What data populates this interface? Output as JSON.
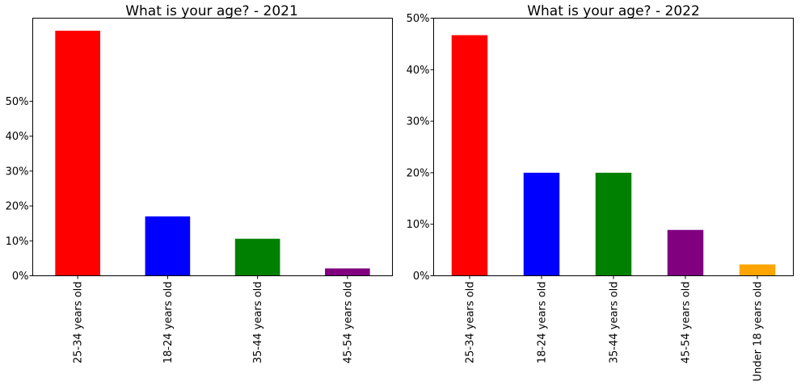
{
  "chart_data": [
    {
      "type": "bar",
      "title": "What is your age? - 2021",
      "xlabel": "",
      "ylabel": "",
      "categories": [
        "25-34 years old",
        "18-24 years old",
        "35-44 years old",
        "45-54 years old"
      ],
      "values": [
        70.2,
        17.0,
        10.6,
        2.1
      ],
      "colors": [
        "#ff0000",
        "#0000ff",
        "#008000",
        "#800080"
      ],
      "yticks": [
        0,
        10,
        20,
        30,
        40,
        50
      ],
      "ytick_labels": [
        "0%",
        "10%",
        "20%",
        "30%",
        "40%",
        "50%"
      ],
      "ylim": [
        0,
        73.8
      ],
      "grid": false,
      "legend": "none"
    },
    {
      "type": "bar",
      "title": "What is your age? - 2022",
      "xlabel": "",
      "ylabel": "",
      "categories": [
        "25-34 years old",
        "18-24 years old",
        "35-44 years old",
        "45-54 years old",
        "Under 18 years old"
      ],
      "values": [
        46.7,
        20.0,
        20.0,
        8.9,
        2.2
      ],
      "colors": [
        "#ff0000",
        "#0000ff",
        "#008000",
        "#800080",
        "#ffa500"
      ],
      "yticks": [
        0,
        10,
        20,
        30,
        40,
        50
      ],
      "ytick_labels": [
        "0%",
        "10%",
        "20%",
        "30%",
        "40%",
        "50%"
      ],
      "ylim": [
        0,
        50
      ],
      "grid": false,
      "legend": "none"
    }
  ]
}
